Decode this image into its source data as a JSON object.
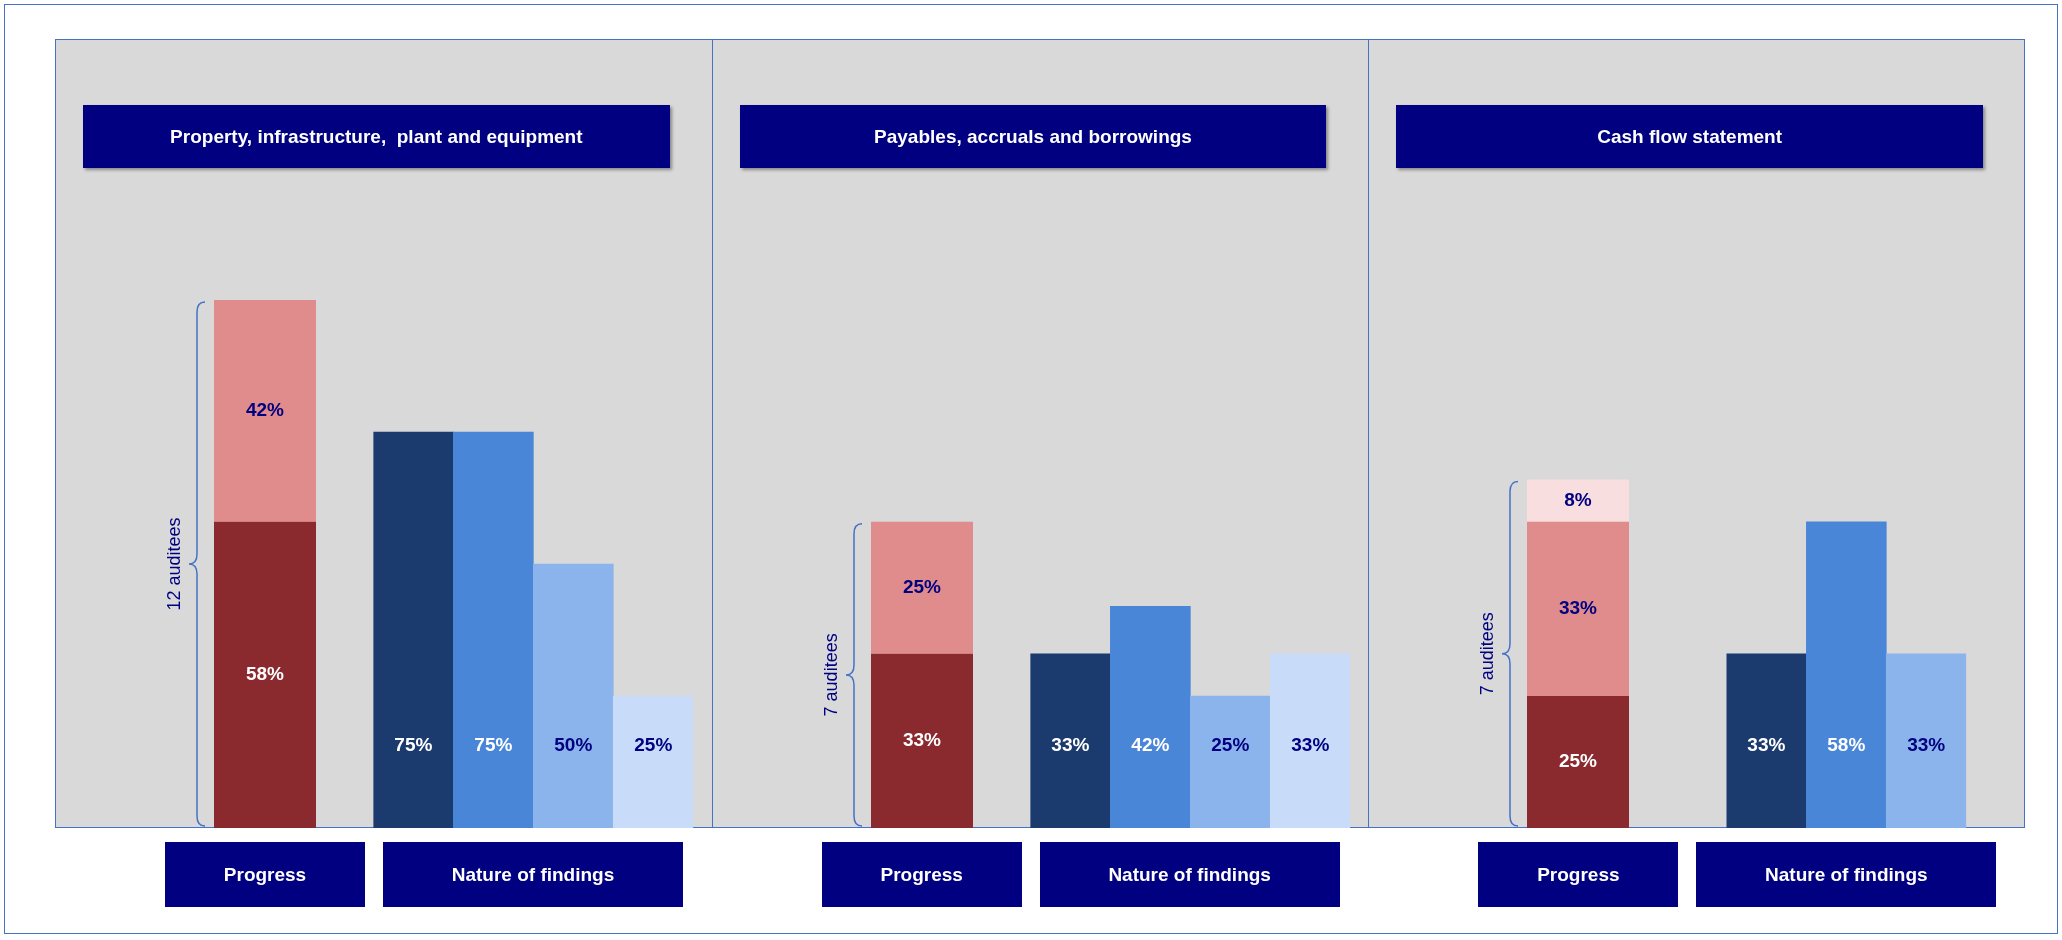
{
  "chart_data": [
    {
      "type": "bar",
      "title": "Property, infrastructure,  plant and equipment",
      "categories": [
        "Progress"
      ],
      "stacked": true,
      "tick_labels": "x",
      "series": [
        {
          "color": "#8b2a2e",
          "values": [
            58
          ],
          "value_labels": [
            "58%"
          ]
        },
        {
          "color": "#e08c8c",
          "values": [
            42
          ],
          "value_labels": [
            "42%"
          ]
        }
      ],
      "annotations": [
        "12 auditees"
      ]
    },
    {
      "type": "bar",
      "xlabel": "Nature of findings",
      "categories": [
        null,
        null,
        null,
        null
      ],
      "tick_labels": "x",
      "values": [
        75,
        75,
        50,
        25
      ],
      "colors": [
        "#1b3a6e",
        "#4a86d8",
        "#8cb4ec",
        "#c8dcfa"
      ],
      "value_labels": [
        "75%",
        "75%",
        "50%",
        "25%"
      ]
    },
    {
      "type": "bar",
      "title": "Payables, accruals and borrowings",
      "categories": [
        "Progress"
      ],
      "stacked": true,
      "tick_labels": "x",
      "series": [
        {
          "color": "#8b2a2e",
          "values": [
            33
          ],
          "value_labels": [
            "33%"
          ]
        },
        {
          "color": "#e08c8c",
          "values": [
            25
          ],
          "value_labels": [
            "25%"
          ]
        }
      ],
      "annotations": [
        "7 auditees"
      ]
    },
    {
      "type": "bar",
      "xlabel": "Nature of findings",
      "categories": [
        null,
        null,
        null,
        null
      ],
      "tick_labels": "x",
      "values": [
        33,
        42,
        25,
        33
      ],
      "colors": [
        "#1b3a6e",
        "#4a86d8",
        "#8cb4ec",
        "#c8dcfa"
      ],
      "value_labels": [
        "33%",
        "42%",
        "25%",
        "33%"
      ]
    },
    {
      "type": "bar",
      "title": "Cash flow statement",
      "categories": [
        "Progress"
      ],
      "stacked": true,
      "tick_labels": "x",
      "series": [
        {
          "color": "#8b2a2e",
          "values": [
            25
          ],
          "value_labels": [
            "25%"
          ]
        },
        {
          "color": "#e08c8c",
          "values": [
            33
          ],
          "value_labels": [
            "33%"
          ]
        },
        {
          "color": "#f8dede",
          "values": [
            8
          ],
          "value_labels": [
            "8%"
          ]
        }
      ],
      "annotations": [
        "7 auditees"
      ]
    },
    {
      "type": "bar",
      "xlabel": "Nature of findings",
      "categories": [
        null,
        null,
        null
      ],
      "tick_labels": "x",
      "values": [
        33,
        58,
        33
      ],
      "colors": [
        "#1b3a6e",
        "#4a86d8",
        "#8cb4ec"
      ],
      "value_labels": [
        "33%",
        "58%",
        "33%"
      ]
    }
  ]
}
